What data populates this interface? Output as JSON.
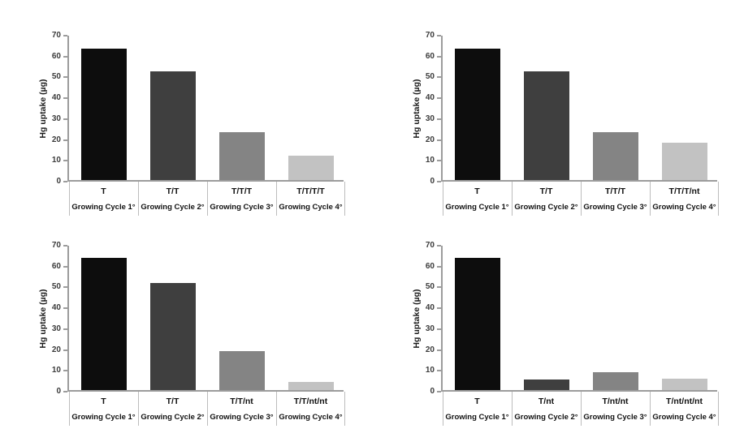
{
  "figure": {
    "background": "#ffffff",
    "layout": "2x2 grid of bar charts"
  },
  "axis": {
    "line_color": "#9c9c9c",
    "separator_color": "#bdbdbd",
    "tick_text_color": "#3b3b3b",
    "category_text_color": "#111111"
  },
  "chart_data": [
    {
      "type": "bar",
      "title": "",
      "ylabel": "Hg uptake (µg)",
      "xlabel": "",
      "ylim": [
        0,
        70
      ],
      "ytick_step": 10,
      "yticks": [
        0,
        10,
        20,
        30,
        40,
        50,
        60,
        70
      ],
      "grid": false,
      "legend": "none",
      "categories": [
        "T",
        "T/T",
        "T/T/T",
        "T/T/T/T"
      ],
      "group_labels": [
        "Growing Cycle 1°",
        "Growing Cycle 2°",
        "Growing Cycle 3°",
        "Growing Cycle 4°"
      ],
      "values": [
        63,
        52,
        23,
        11.5
      ],
      "bar_colors": [
        "#0d0d0d",
        "#3f3f3f",
        "#848484",
        "#c2c2c2"
      ]
    },
    {
      "type": "bar",
      "title": "",
      "ylabel": "Hg uptake (µg)",
      "xlabel": "",
      "ylim": [
        0,
        70
      ],
      "ytick_step": 10,
      "yticks": [
        0,
        10,
        20,
        30,
        40,
        50,
        60,
        70
      ],
      "grid": false,
      "legend": "none",
      "categories": [
        "T",
        "T/T",
        "T/T/T",
        "T/T/T/nt"
      ],
      "group_labels": [
        "Growing Cycle 1°",
        "Growing Cycle 2°",
        "Growing Cycle 3°",
        "Growing Cycle 4°"
      ],
      "values": [
        63,
        52,
        23,
        18
      ],
      "bar_colors": [
        "#0d0d0d",
        "#3f3f3f",
        "#848484",
        "#c2c2c2"
      ]
    },
    {
      "type": "bar",
      "title": "",
      "ylabel": "Hg uptake (µg)",
      "xlabel": "",
      "ylim": [
        0,
        70
      ],
      "ytick_step": 10,
      "yticks": [
        0,
        10,
        20,
        30,
        40,
        50,
        60,
        70
      ],
      "grid": false,
      "legend": "none",
      "categories": [
        "T",
        "T/T",
        "T/T/nt",
        "T/T/nt/nt"
      ],
      "group_labels": [
        "Growing Cycle 1°",
        "Growing Cycle 2°",
        "Growing Cycle 3°",
        "Growing Cycle 4°"
      ],
      "values": [
        63.5,
        51.5,
        18.5,
        4
      ],
      "bar_colors": [
        "#0d0d0d",
        "#3f3f3f",
        "#848484",
        "#c2c2c2"
      ]
    },
    {
      "type": "bar",
      "title": "",
      "ylabel": "Hg uptake (µg)",
      "xlabel": "",
      "ylim": [
        0,
        70
      ],
      "ytick_step": 10,
      "yticks": [
        0,
        10,
        20,
        30,
        40,
        50,
        60,
        70
      ],
      "grid": false,
      "legend": "none",
      "categories": [
        "T",
        "T/nt",
        "T/nt/nt",
        "T/nt/nt/nt"
      ],
      "group_labels": [
        "Growing Cycle 1°",
        "Growing Cycle 2°",
        "Growing Cycle 3°",
        "Growing Cycle 4°"
      ],
      "values": [
        63.5,
        5,
        8.5,
        5.5
      ],
      "bar_colors": [
        "#0d0d0d",
        "#3f3f3f",
        "#848484",
        "#c2c2c2"
      ]
    }
  ]
}
